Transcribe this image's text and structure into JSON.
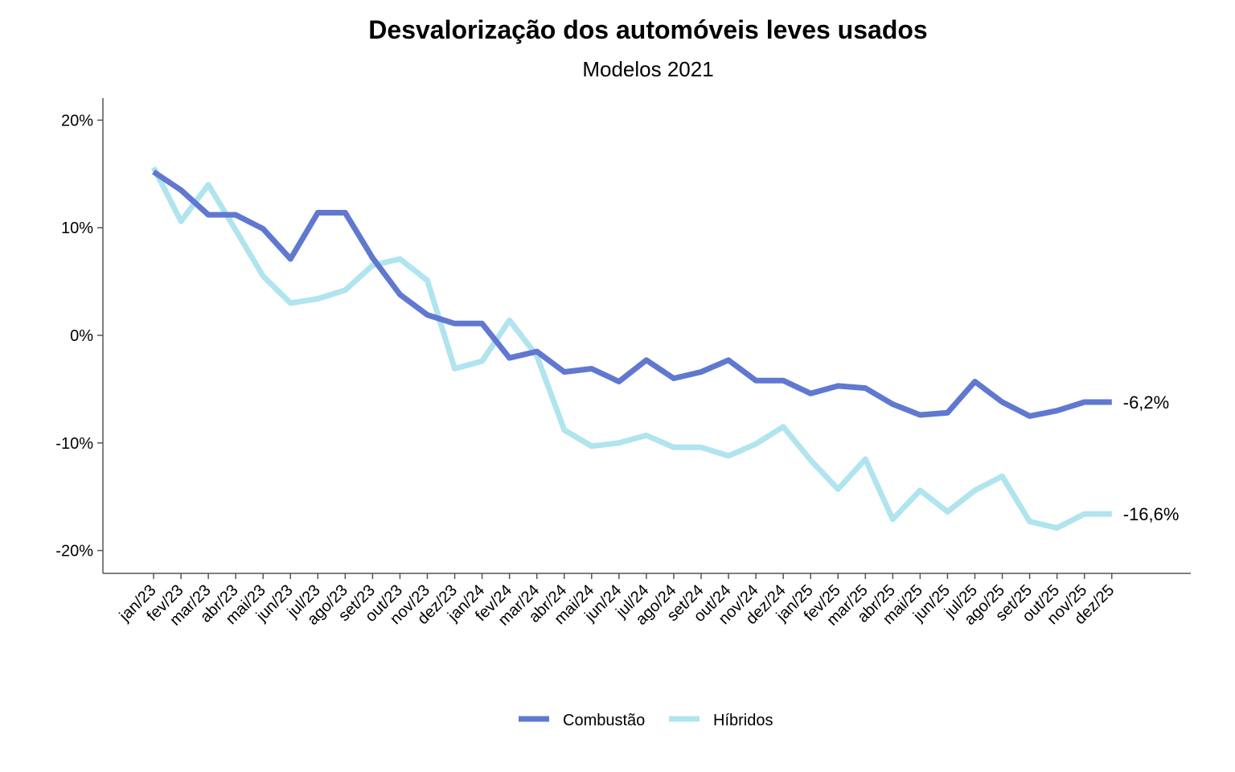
{
  "chart_data": {
    "type": "line",
    "title": "Desvalorização dos automóveis leves usados",
    "subtitle": "Modelos 2021",
    "xlabel": "",
    "ylabel": "",
    "ylim": [
      -22,
      22
    ],
    "yticks": [
      20,
      10,
      0,
      -10,
      -20
    ],
    "ytick_labels": [
      "20%",
      "10%",
      "0%",
      "-10%",
      "-20%"
    ],
    "grid": false,
    "legend_position": "bottom-center",
    "categories": [
      "jan/23",
      "fev/23",
      "mar/23",
      "abr/23",
      "mai/23",
      "jun/23",
      "jul/23",
      "ago/23",
      "set/23",
      "out/23",
      "nov/23",
      "dez/23",
      "jan/24",
      "fev/24",
      "mar/24",
      "abr/24",
      "mai/24",
      "jun/24",
      "jul/24",
      "ago/24",
      "set/24",
      "out/24",
      "nov/24",
      "dez/24",
      "jan/25",
      "fev/25",
      "mar/25",
      "abr/25",
      "mai/25",
      "jun/25",
      "jul/25",
      "ago/25",
      "set/25",
      "out/25",
      "nov/25",
      "dez/25"
    ],
    "series": [
      {
        "name": "Combustão",
        "color": "#6078d0",
        "end_label": "-6,2%",
        "values": [
          15.2,
          13.5,
          11.2,
          11.2,
          9.9,
          7.1,
          11.4,
          11.4,
          7.2,
          3.8,
          1.9,
          1.1,
          1.1,
          -2.1,
          -1.5,
          -3.4,
          -3.1,
          -4.3,
          -2.3,
          -4.0,
          -3.4,
          -2.3,
          -4.2,
          -4.2,
          -5.4,
          -4.7,
          -4.9,
          -6.4,
          -7.4,
          -7.2,
          -4.3,
          -6.2,
          -7.5,
          -7.0,
          -6.2,
          -6.2
        ]
      },
      {
        "name": "Híbridos",
        "color": "#b0e4ee",
        "end_label": "-16,6%",
        "values": [
          15.6,
          10.6,
          14.0,
          9.8,
          5.5,
          3.0,
          3.4,
          4.2,
          6.5,
          7.1,
          5.1,
          -3.1,
          -2.4,
          1.4,
          -1.9,
          -8.8,
          -10.3,
          -10.0,
          -9.3,
          -10.4,
          -10.4,
          -11.2,
          -10.1,
          -8.5,
          -11.6,
          -14.3,
          -11.5,
          -17.1,
          -14.4,
          -16.4,
          -14.4,
          -13.1,
          -17.3,
          -17.9,
          -16.6,
          -16.6
        ]
      }
    ]
  }
}
